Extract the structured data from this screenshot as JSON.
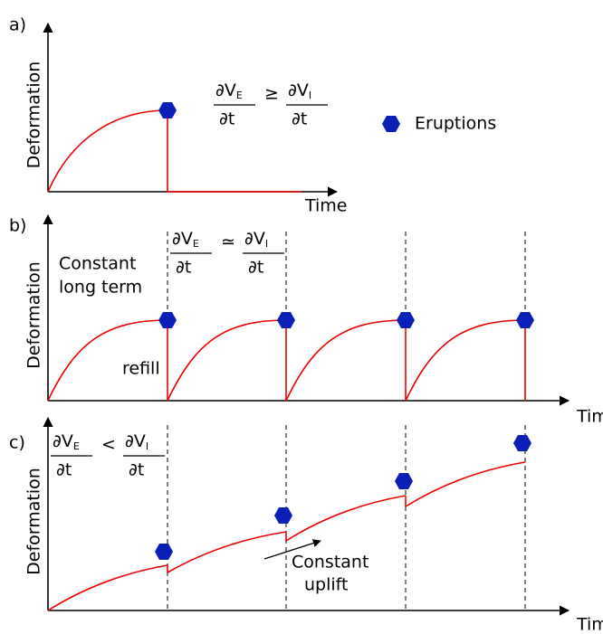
{
  "panels": [
    {
      "label": "a)",
      "y_axis_label": "Deformation",
      "x_axis_label": "Time",
      "equation": {
        "left": {
          "numerator": "∂V",
          "subscript": "E",
          "denominator": "∂t"
        },
        "operator": "≥",
        "right": {
          "numerator": "∂V",
          "subscript": "I",
          "denominator": "∂t"
        }
      },
      "annotations": []
    },
    {
      "label": "b)",
      "y_axis_label": "Deformation",
      "x_axis_label": "Time",
      "equation": {
        "left": {
          "numerator": "∂V",
          "subscript": "E",
          "denominator": "∂t"
        },
        "operator": "≃",
        "right": {
          "numerator": "∂V",
          "subscript": "I",
          "denominator": "∂t"
        }
      },
      "annotations": [
        "Constant",
        "long term",
        "refill"
      ]
    },
    {
      "label": "c)",
      "y_axis_label": "Deformation",
      "x_axis_label": "Time",
      "equation": {
        "left": {
          "numerator": "∂V",
          "subscript": "E",
          "denominator": "∂t"
        },
        "operator": "<",
        "right": {
          "numerator": "∂V",
          "subscript": "I",
          "denominator": "∂t"
        }
      },
      "annotations": [
        "Constant",
        "uplift"
      ]
    }
  ],
  "legend": {
    "label": "Eruptions"
  }
}
